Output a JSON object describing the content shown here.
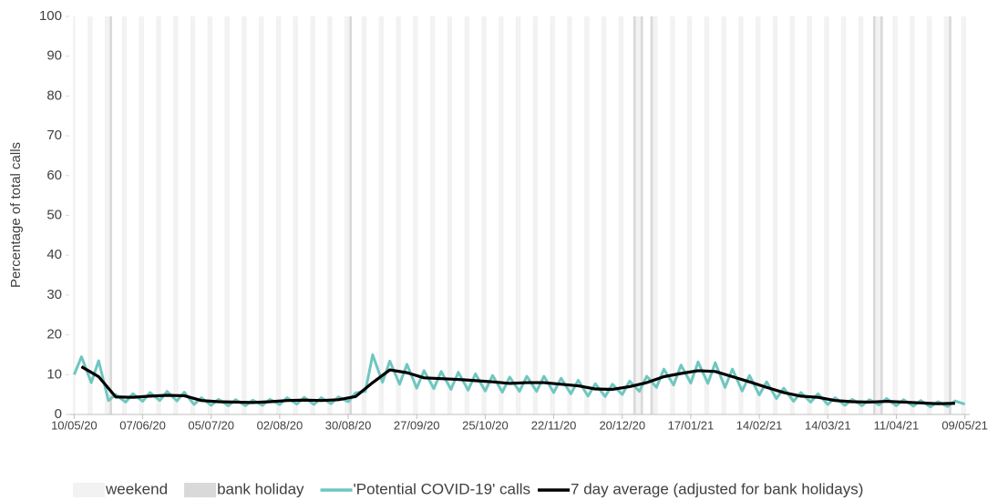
{
  "chart_data": {
    "type": "line",
    "y_label": "Percentage of total calls",
    "xlim": [
      -2,
      366
    ],
    "ylim": [
      0,
      100
    ],
    "yticks": [
      0,
      10,
      20,
      30,
      40,
      50,
      60,
      70,
      80,
      90,
      100
    ],
    "xticks": [
      {
        "value": 0,
        "label": "10/05/20"
      },
      {
        "value": 28,
        "label": "07/06/20"
      },
      {
        "value": 56,
        "label": "05/07/20"
      },
      {
        "value": 84,
        "label": "02/08/20"
      },
      {
        "value": 112,
        "label": "30/08/20"
      },
      {
        "value": 140,
        "label": "27/09/20"
      },
      {
        "value": 168,
        "label": "25/10/20"
      },
      {
        "value": 196,
        "label": "22/11/20"
      },
      {
        "value": 224,
        "label": "20/12/20"
      },
      {
        "value": 252,
        "label": "17/01/21"
      },
      {
        "value": 280,
        "label": "14/02/21"
      },
      {
        "value": 308,
        "label": "14/03/21"
      },
      {
        "value": 336,
        "label": "11/04/21"
      },
      {
        "value": 364,
        "label": "09/05/21"
      }
    ],
    "shading": [
      {
        "name": "weekend",
        "color": "#f2f2f2",
        "x": [
          0,
          6,
          7,
          13,
          14,
          20,
          21,
          27,
          28,
          34,
          35,
          41,
          42,
          48,
          49,
          55,
          56,
          62,
          63,
          69,
          70,
          76,
          77,
          83,
          84,
          90,
          91,
          97,
          98,
          104,
          105,
          111,
          112,
          118,
          119,
          125,
          126,
          132,
          133,
          139,
          140,
          146,
          147,
          153,
          154,
          160,
          161,
          167,
          168,
          174,
          175,
          181,
          182,
          188,
          189,
          195,
          196,
          202,
          203,
          209,
          210,
          216,
          217,
          223,
          224,
          230,
          231,
          237,
          238,
          244,
          245,
          251,
          252,
          258,
          259,
          265,
          266,
          272,
          273,
          279,
          280,
          286,
          287,
          293,
          294,
          300,
          301,
          307,
          308,
          314,
          315,
          321,
          322,
          328,
          329,
          335,
          336,
          342,
          343,
          349,
          350,
          356,
          357,
          363,
          364
        ]
      },
      {
        "name": "bank holiday",
        "color": "#d9d9d9",
        "x": [
          15,
          113,
          229,
          232,
          236,
          327,
          330,
          358
        ]
      }
    ],
    "series": [
      {
        "name": "'Potential COVID-19' calls",
        "color": "#6fc6c0",
        "x": [
          0,
          3,
          7,
          10,
          14,
          17,
          21,
          24,
          28,
          31,
          35,
          38,
          42,
          45,
          49,
          52,
          56,
          59,
          63,
          66,
          70,
          73,
          77,
          80,
          84,
          87,
          91,
          94,
          98,
          101,
          105,
          108,
          112,
          115,
          119,
          122,
          126,
          129,
          133,
          136,
          140,
          143,
          147,
          150,
          154,
          157,
          161,
          164,
          168,
          171,
          175,
          178,
          182,
          185,
          189,
          192,
          196,
          199,
          203,
          206,
          210,
          213,
          217,
          220,
          224,
          227,
          231,
          234,
          238,
          241,
          245,
          248,
          252,
          255,
          259,
          262,
          266,
          269,
          273,
          276,
          280,
          283,
          287,
          290,
          294,
          297,
          301,
          304,
          308,
          311,
          315,
          318,
          322,
          325,
          329,
          332,
          336,
          339,
          343,
          346,
          350,
          353,
          357,
          360,
          364
        ],
        "values": [
          10.0,
          14.5,
          8.0,
          13.5,
          3.5,
          5.0,
          3.1,
          5.2,
          3.3,
          5.5,
          3.5,
          5.8,
          3.4,
          5.6,
          2.5,
          4.2,
          2.3,
          3.8,
          2.2,
          3.7,
          2.2,
          3.6,
          2.3,
          3.8,
          2.5,
          4.2,
          2.6,
          4.3,
          2.5,
          4.2,
          2.7,
          4.4,
          3.2,
          5.4,
          5.8,
          15.0,
          8.1,
          13.4,
          7.6,
          12.6,
          6.6,
          11.0,
          6.5,
          10.8,
          6.3,
          10.6,
          6.1,
          10.2,
          5.9,
          9.8,
          5.6,
          9.4,
          5.8,
          9.6,
          5.8,
          9.6,
          5.5,
          9.1,
          5.2,
          8.6,
          4.6,
          7.7,
          4.5,
          7.6,
          5.0,
          8.4,
          5.8,
          9.6,
          6.8,
          11.4,
          7.4,
          12.4,
          7.9,
          13.2,
          7.8,
          13.0,
          6.8,
          11.4,
          5.9,
          9.8,
          4.9,
          8.2,
          4.0,
          6.6,
          3.3,
          5.5,
          3.1,
          5.2,
          2.5,
          4.2,
          2.3,
          3.8,
          2.2,
          3.7,
          2.4,
          4.0,
          2.2,
          3.7,
          2.1,
          3.5,
          1.9,
          3.2,
          2.0,
          3.4,
          2.6
        ]
      },
      {
        "name": "7 day average (adjusted for bank holidays)",
        "color": "#000000",
        "x": [
          3,
          10,
          17,
          24,
          31,
          38,
          45,
          52,
          59,
          66,
          73,
          80,
          87,
          94,
          101,
          108,
          115,
          122,
          129,
          136,
          143,
          150,
          157,
          164,
          171,
          178,
          185,
          192,
          199,
          206,
          213,
          220,
          227,
          234,
          241,
          248,
          255,
          262,
          269,
          276,
          283,
          290,
          297,
          304,
          311,
          318,
          325,
          332,
          339,
          346,
          353,
          360
        ],
        "values": [
          12.0,
          9.5,
          4.4,
          4.3,
          4.6,
          4.8,
          4.7,
          3.5,
          3.2,
          3.1,
          3.0,
          3.2,
          3.5,
          3.6,
          3.5,
          3.7,
          4.5,
          8.0,
          11.2,
          10.5,
          9.2,
          9.0,
          8.8,
          8.5,
          8.2,
          7.8,
          8.0,
          8.0,
          7.6,
          7.2,
          6.4,
          6.3,
          7.0,
          8.0,
          9.5,
          10.3,
          11.0,
          10.8,
          9.5,
          8.2,
          6.8,
          5.5,
          4.6,
          4.3,
          3.5,
          3.2,
          3.1,
          3.3,
          3.1,
          2.9,
          2.7,
          2.8
        ]
      }
    ]
  }
}
